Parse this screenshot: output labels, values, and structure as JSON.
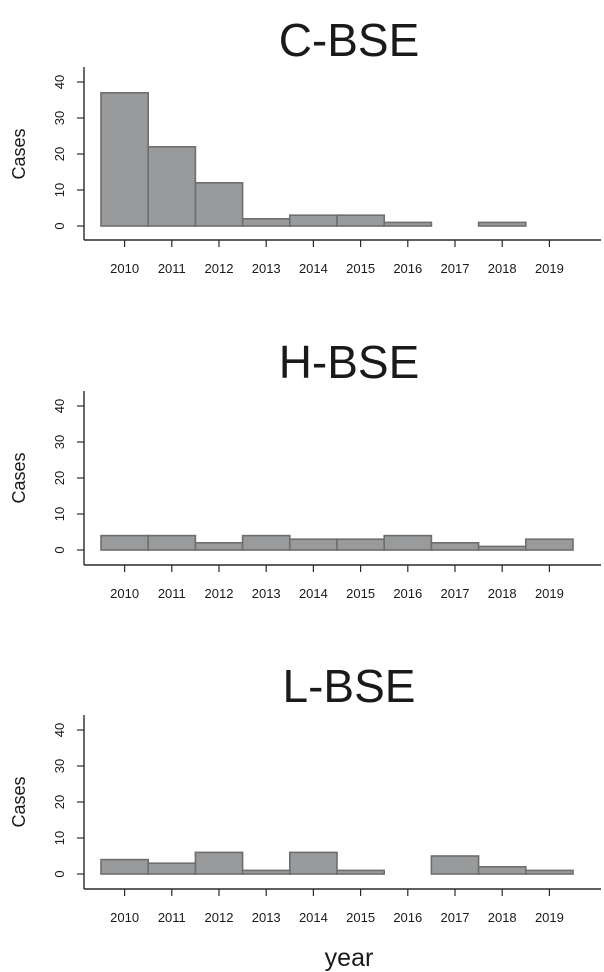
{
  "figure": {
    "xlabel": "year",
    "colors": {
      "bar_fill": "#999a9b",
      "bar_stroke": "#6e6e6e",
      "axis": "#2a2a2a"
    }
  },
  "chart_data": [
    {
      "type": "bar",
      "title": "C-BSE",
      "ylabel": "Cases",
      "xlabel": "",
      "ylim": [
        0,
        40
      ],
      "yticks": [
        0,
        10,
        20,
        30,
        40
      ],
      "categories": [
        "2010",
        "2011",
        "2012",
        "2013",
        "2014",
        "2015",
        "2016",
        "2017",
        "2018",
        "2019"
      ],
      "values": [
        37,
        22,
        12,
        2,
        3,
        3,
        1,
        0,
        1,
        0
      ]
    },
    {
      "type": "bar",
      "title": "H-BSE",
      "ylabel": "Cases",
      "xlabel": "",
      "ylim": [
        0,
        40
      ],
      "yticks": [
        0,
        10,
        20,
        30,
        40
      ],
      "categories": [
        "2010",
        "2011",
        "2012",
        "2013",
        "2014",
        "2015",
        "2016",
        "2017",
        "2018",
        "2019"
      ],
      "values": [
        4,
        4,
        2,
        4,
        3,
        3,
        4,
        2,
        1,
        3
      ]
    },
    {
      "type": "bar",
      "title": "L-BSE",
      "ylabel": "Cases",
      "xlabel": "year",
      "ylim": [
        0,
        40
      ],
      "yticks": [
        0,
        10,
        20,
        30,
        40
      ],
      "categories": [
        "2010",
        "2011",
        "2012",
        "2013",
        "2014",
        "2015",
        "2016",
        "2017",
        "2018",
        "2019"
      ],
      "values": [
        4,
        3,
        6,
        1,
        6,
        1,
        0,
        5,
        2,
        1
      ]
    }
  ]
}
